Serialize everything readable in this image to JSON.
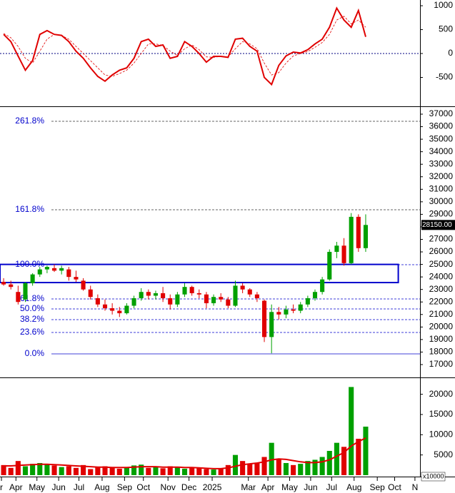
{
  "chart_data": [
    {
      "type": "line",
      "xlim": [
        -0.5,
        57.5
      ],
      "ylim": [
        -1090,
        1120
      ],
      "yticks": [
        1000,
        500,
        0,
        -500
      ],
      "zero_line": true,
      "series": [
        {
          "color": "#e00000",
          "values": [
            400,
            250,
            -50,
            -350,
            -150,
            400,
            480,
            400,
            380,
            250,
            50,
            -100,
            -300,
            -480,
            -580,
            -450,
            -350,
            -300,
            -100,
            250,
            300,
            150,
            180,
            -100,
            -60,
            250,
            150,
            0,
            -180,
            -60,
            -60,
            -80,
            300,
            320,
            150,
            50,
            -500,
            -650,
            -250,
            -50,
            30,
            10,
            80,
            200,
            300,
            550,
            950,
            700,
            550,
            900,
            350
          ]
        },
        {
          "color": "#e00000",
          "dashed": true,
          "values": [
            420,
            330,
            150,
            -100,
            -200,
            50,
            300,
            400,
            380,
            300,
            150,
            0,
            -150,
            -300,
            -450,
            -480,
            -420,
            -350,
            -200,
            0,
            200,
            200,
            170,
            50,
            -40,
            100,
            180,
            80,
            -70,
            -80,
            -60,
            -70,
            100,
            250,
            200,
            100,
            -200,
            -450,
            -400,
            -200,
            -50,
            0,
            40,
            130,
            230,
            400,
            700,
            780,
            620,
            700,
            550
          ]
        }
      ]
    },
    {
      "type": "candlestick",
      "xlim": [
        -0.5,
        57.5
      ],
      "ylim": [
        16088,
        37456
      ],
      "yticks": [
        17000,
        18000,
        19000,
        20000,
        21000,
        22000,
        23000,
        24000,
        25000,
        26000,
        27000,
        28000,
        29000,
        30000,
        31000,
        32000,
        33000,
        34000,
        35000,
        36000,
        37000
      ],
      "up_color": "#00a000",
      "down_color": "#e00000",
      "open": [
        23600,
        23400,
        22800,
        22200,
        23500,
        24200,
        24600,
        24700,
        24500,
        24600,
        24000,
        23700,
        23000,
        22300,
        21800,
        21500,
        21300,
        21100,
        21700,
        22300,
        22800,
        22500,
        22700,
        22300,
        21800,
        22600,
        23200,
        22700,
        22600,
        21900,
        22400,
        22200,
        21700,
        23300,
        23000,
        22600,
        22100,
        19200,
        21200,
        21000,
        21400,
        21300,
        21800,
        22300,
        22800,
        23800,
        26000,
        26500,
        25100,
        28800,
        26300
      ],
      "high": [
        23900,
        23700,
        23300,
        23600,
        24300,
        24800,
        24900,
        25000,
        24900,
        24800,
        24500,
        23900,
        23300,
        22600,
        22200,
        21900,
        21600,
        21900,
        22500,
        23100,
        23000,
        22900,
        23200,
        22600,
        22800,
        23500,
        23300,
        23000,
        22800,
        22600,
        22700,
        22400,
        23700,
        23500,
        23100,
        22800,
        22200,
        21800,
        21600,
        21700,
        21800,
        22000,
        22500,
        23000,
        24000,
        26200,
        26800,
        27100,
        29100,
        29000,
        29000
      ],
      "low": [
        23300,
        23000,
        21800,
        22000,
        23300,
        24000,
        24300,
        24400,
        24200,
        23700,
        23600,
        22900,
        22200,
        21600,
        21300,
        21000,
        20800,
        21000,
        21500,
        22100,
        22200,
        22200,
        22000,
        21400,
        21600,
        22400,
        22500,
        22300,
        21500,
        21700,
        22000,
        21500,
        21600,
        22700,
        22400,
        22000,
        18800,
        17900,
        20600,
        20700,
        21100,
        21100,
        21600,
        22100,
        22600,
        23700,
        25500,
        24900,
        25000,
        26000,
        26000
      ],
      "close": [
        23400,
        23200,
        22000,
        23500,
        24200,
        24600,
        24800,
        24500,
        24700,
        24000,
        23800,
        23000,
        22400,
        21800,
        21500,
        21300,
        21100,
        21700,
        22300,
        22800,
        22500,
        22700,
        22300,
        21800,
        22600,
        23200,
        22700,
        22600,
        21900,
        22400,
        22200,
        21700,
        23300,
        23000,
        22600,
        22300,
        19200,
        21200,
        21000,
        21400,
        21300,
        21800,
        22300,
        22800,
        23800,
        26000,
        26500,
        25100,
        28800,
        26300,
        28150
      ],
      "box": {
        "x": [
          -0.5,
          54.5
        ],
        "y": [
          23550,
          25000
        ],
        "color": "#0000cc"
      },
      "levels": [
        {
          "value": 36430,
          "label": "261.8%"
        },
        {
          "value": 29365,
          "label": "161.8%"
        },
        {
          "value": 24978,
          "label": "100.0%"
        },
        {
          "value": 22243,
          "label": "61.8%"
        },
        {
          "value": 21445,
          "label": "50.0%"
        },
        {
          "value": 20590,
          "label": "38.2%"
        },
        {
          "value": 19564,
          "label": "23.6%"
        },
        {
          "value": 17855,
          "label": "0.0%"
        }
      ],
      "last_price": {
        "value": 28150,
        "label": "28150.00"
      }
    },
    {
      "type": "bar",
      "xlim": [
        -0.5,
        57.5
      ],
      "ylim": [
        0,
        23640
      ],
      "yticks": [
        20000,
        15000,
        10000,
        5000
      ],
      "unit_label": "x10000",
      "values": [
        2500,
        1800,
        3500,
        2200,
        2800,
        3000,
        2600,
        2400,
        2000,
        2200,
        1800,
        2500,
        1500,
        2000,
        2200,
        1800,
        1600,
        2000,
        2400,
        2600,
        1800,
        2000,
        1700,
        2200,
        1900,
        1600,
        2000,
        1800,
        1500,
        1400,
        1600,
        2500,
        5000,
        3500,
        2800,
        3000,
        4500,
        8000,
        4000,
        3000,
        2500,
        2800,
        3500,
        3800,
        4500,
        6000,
        8000,
        7000,
        21800,
        9000,
        12000
      ],
      "series": [
        {
          "color": "#e00000",
          "values": [
            2300,
            2300,
            2400,
            2500,
            2600,
            2700,
            2700,
            2600,
            2500,
            2400,
            2300,
            2200,
            2100,
            2000,
            2000,
            1900,
            1900,
            1900,
            2000,
            2100,
            2100,
            2100,
            2000,
            2000,
            2000,
            1900,
            1900,
            1800,
            1700,
            1600,
            1600,
            1800,
            2200,
            2600,
            2800,
            3000,
            3300,
            3800,
            4000,
            3900,
            3600,
            3300,
            3100,
            3100,
            3300,
            3800,
            4700,
            5600,
            7200,
            8300,
            9200
          ]
        }
      ],
      "xticks": [
        {
          "value": -0.3,
          "label": "r"
        },
        {
          "value": 1.7,
          "label": "Apr"
        },
        {
          "value": 4.6,
          "label": "May"
        },
        {
          "value": 7.6,
          "label": "Jun"
        },
        {
          "value": 10.4,
          "label": "Jul"
        },
        {
          "value": 13.6,
          "label": "Aug"
        },
        {
          "value": 16.7,
          "label": "Sep"
        },
        {
          "value": 19.3,
          "label": "Oct"
        },
        {
          "value": 22.7,
          "label": "Nov"
        },
        {
          "value": 25.6,
          "label": "Dec"
        },
        {
          "value": 28.8,
          "label": "2025"
        },
        {
          "value": 33.8,
          "label": "Mar"
        },
        {
          "value": 36.5,
          "label": "Apr"
        },
        {
          "value": 39.5,
          "label": "May"
        },
        {
          "value": 42.4,
          "label": "Jun"
        },
        {
          "value": 45.3,
          "label": "Jul"
        },
        {
          "value": 48.4,
          "label": "Aug"
        },
        {
          "value": 51.6,
          "label": "Sep"
        },
        {
          "value": 54,
          "label": "Oct"
        },
        {
          "value": 56.8,
          "label": "N"
        }
      ]
    }
  ]
}
